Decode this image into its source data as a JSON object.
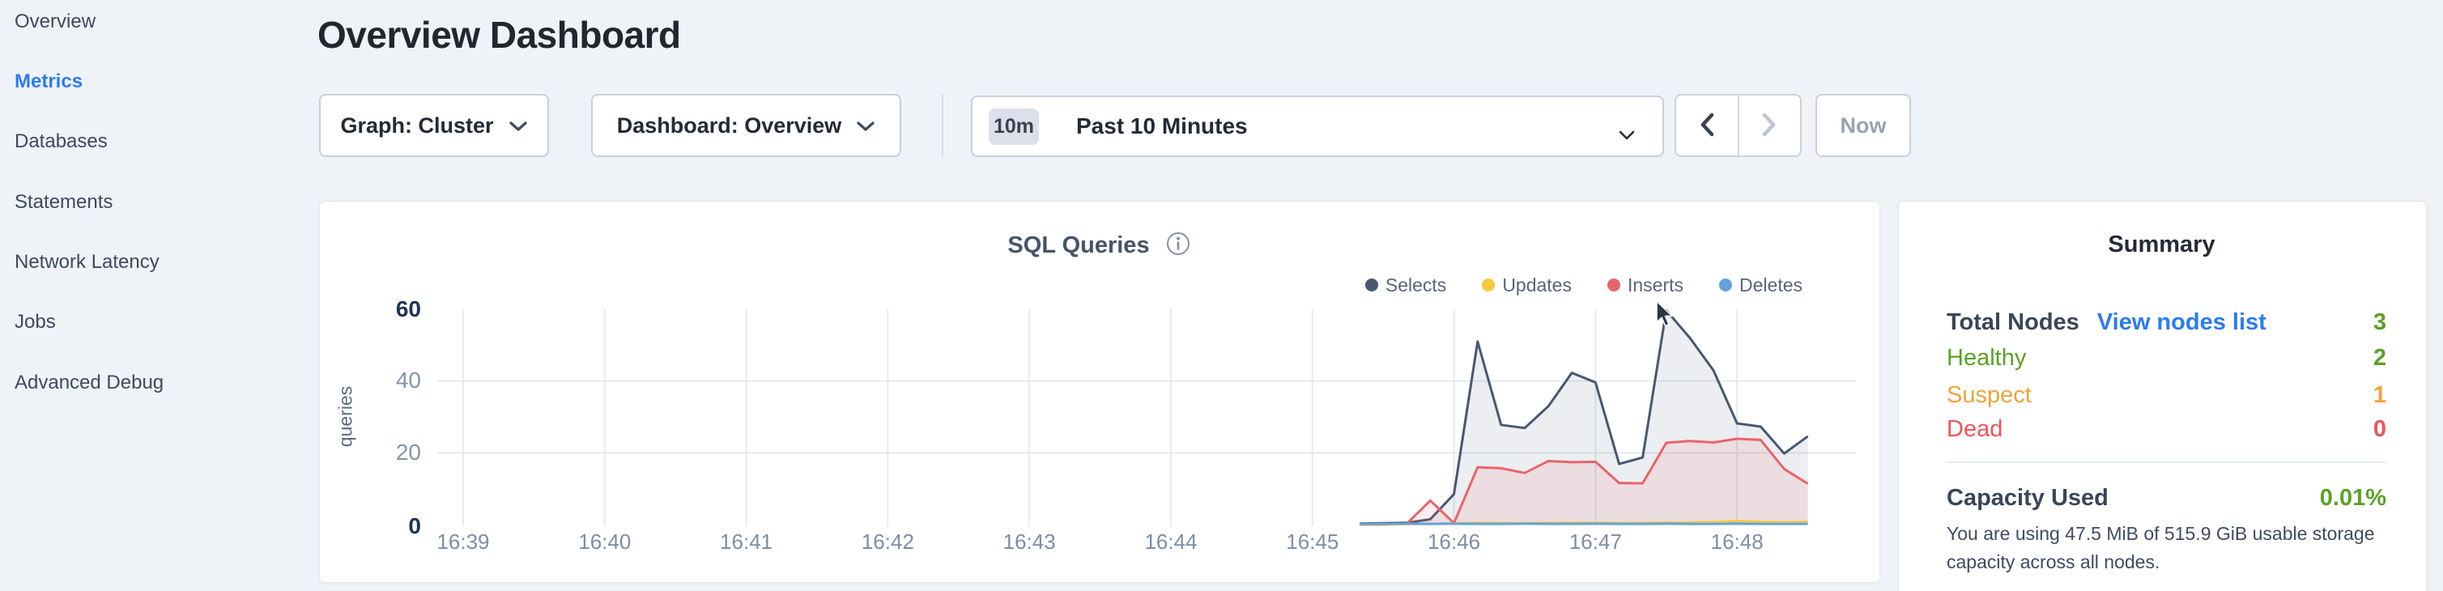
{
  "sidebar": {
    "items": [
      {
        "label": "Overview",
        "active": false
      },
      {
        "label": "Metrics",
        "active": true
      },
      {
        "label": "Databases",
        "active": false
      },
      {
        "label": "Statements",
        "active": false
      },
      {
        "label": "Network Latency",
        "active": false
      },
      {
        "label": "Jobs",
        "active": false
      },
      {
        "label": "Advanced Debug",
        "active": false
      }
    ]
  },
  "header": {
    "title": "Overview Dashboard"
  },
  "toolbar": {
    "graph_dropdown_label": "Graph: Cluster",
    "dashboard_dropdown_label": "Dashboard: Overview",
    "time_badge": "10m",
    "time_label": "Past 10 Minutes",
    "now_label": "Now"
  },
  "chart": {
    "title": "SQL Queries",
    "y_axis_label": "queries"
  },
  "chart_data": {
    "type": "area",
    "title": "SQL Queries",
    "ylabel": "queries",
    "ylim": [
      0,
      60
    ],
    "grid": true,
    "legend_position": "top-right",
    "x_axis_unit": "minutes after 16:39",
    "x_ticks": [
      {
        "t": 0,
        "label": "16:39"
      },
      {
        "t": 1,
        "label": "16:40"
      },
      {
        "t": 2,
        "label": "16:41"
      },
      {
        "t": 3,
        "label": "16:42"
      },
      {
        "t": 4,
        "label": "16:43"
      },
      {
        "t": 5,
        "label": "16:44"
      },
      {
        "t": 6,
        "label": "16:45"
      },
      {
        "t": 7,
        "label": "16:46"
      },
      {
        "t": 8,
        "label": "16:47"
      },
      {
        "t": 9,
        "label": "16:48"
      }
    ],
    "y_ticks": [
      {
        "value": 0,
        "emphasis": true
      },
      {
        "value": 20,
        "emphasis": false
      },
      {
        "value": 40,
        "emphasis": false
      },
      {
        "value": 60,
        "emphasis": true
      }
    ],
    "x": [
      6.333,
      6.5,
      6.667,
      6.833,
      7.0,
      7.167,
      7.333,
      7.5,
      7.667,
      7.833,
      8.0,
      8.167,
      8.333,
      8.5,
      8.667,
      8.833,
      9.0,
      9.167,
      9.333,
      9.5
    ],
    "series": [
      {
        "name": "Selects",
        "color": "#475872",
        "fill": "rgba(71,88,114,0.10)",
        "values": [
          0.3,
          0.4,
          0.5,
          1.5,
          8.5,
          51,
          27.8,
          26.9,
          33,
          42.3,
          39.6,
          16.9,
          18.7,
          59.7,
          52,
          43,
          28.2,
          27.3,
          19.8,
          24.6
        ]
      },
      {
        "name": "Inserts",
        "color": "#e8646a",
        "fill": "rgba(232,100,106,0.12)",
        "values": [
          0,
          0,
          0.3,
          6.7,
          0.4,
          16,
          15.7,
          14.4,
          17.7,
          17.4,
          17.5,
          11.6,
          11.5,
          22.8,
          23.3,
          22.9,
          23.9,
          23.6,
          15.5,
          11.4
        ]
      },
      {
        "name": "Updates",
        "color": "#f6c93f",
        "fill": "rgba(246,201,63,0.30)",
        "values": [
          0.1,
          0.1,
          0.15,
          0.2,
          0.3,
          0.5,
          0.45,
          0.4,
          0.5,
          0.55,
          0.5,
          0.45,
          0.5,
          0.55,
          0.6,
          0.7,
          1.0,
          0.8,
          0.6,
          0.8
        ]
      },
      {
        "name": "Deletes",
        "color": "#61a3da",
        "fill": "rgba(97,163,218,0.25)",
        "values": [
          0.2,
          0.2,
          0.25,
          0.2,
          0.25,
          0.2,
          0.2,
          0.25,
          0.2,
          0.2,
          0.25,
          0.2,
          0.2,
          0.25,
          0.2,
          0.2,
          0.25,
          0.2,
          0.2,
          0.2
        ]
      }
    ],
    "legend_order": [
      "Selects",
      "Updates",
      "Inserts",
      "Deletes"
    ]
  },
  "summary": {
    "title": "Summary",
    "total_nodes_label": "Total Nodes",
    "view_nodes_link": "View nodes list",
    "total_nodes_value": "3",
    "total_nodes_color": "#5ba126",
    "node_rows": [
      {
        "label": "Healthy",
        "value": "2",
        "color": "#5ba126"
      },
      {
        "label": "Suspect",
        "value": "1",
        "color": "#f2a33c"
      },
      {
        "label": "Dead",
        "value": "0",
        "color": "#ee5459"
      }
    ],
    "capacity_label": "Capacity Used",
    "capacity_value": "0.01%",
    "capacity_color": "#5ba126",
    "capacity_note": "You are using 47.5 MiB of 515.9 GiB usable storage capacity across all nodes."
  },
  "colors": {
    "page_bg": "#eff2f7",
    "accent_blue": "#2b7cf0",
    "text_dark": "#242a35",
    "text_slate": "#3e4a5e",
    "healthy_green": "#5ba126",
    "suspect_orange": "#f2a33c",
    "dead_red": "#ee5459",
    "grid": "#e6eaf1"
  }
}
